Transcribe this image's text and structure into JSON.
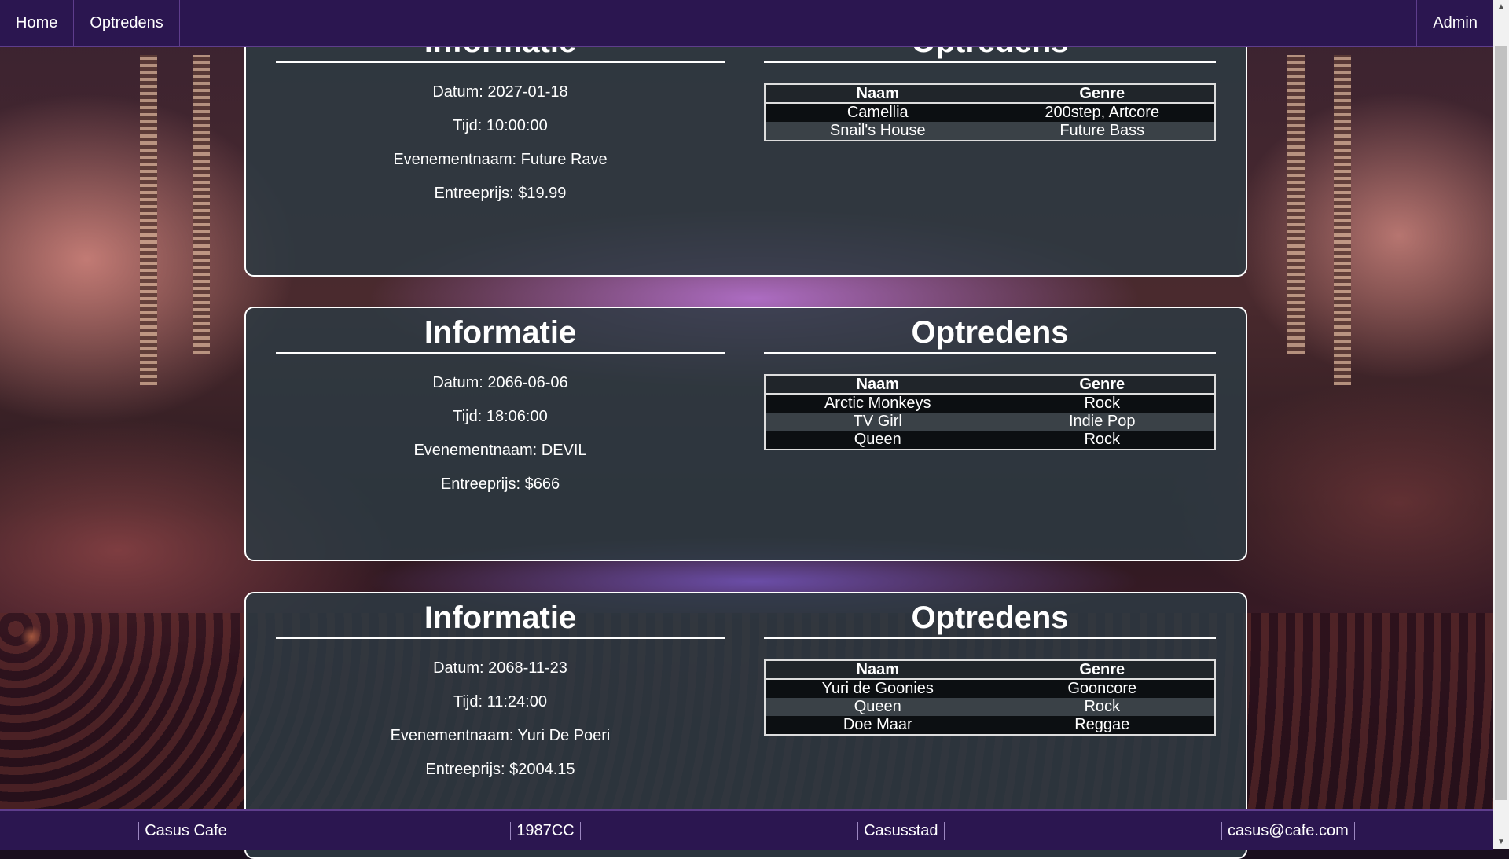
{
  "nav": {
    "home": "Home",
    "optredens": "Optredens",
    "admin": "Admin"
  },
  "events": [
    {
      "info_title": "Informatie",
      "perf_title": "Optredens",
      "datum": "Datum: 2027-01-18",
      "tijd": "Tijd: 10:00:00",
      "evenementnaam": "Evenementnaam: Future Rave",
      "entreeprijs": "Entreeprijs: $19.99",
      "headers": [
        "Naam",
        "Genre"
      ],
      "rows": [
        [
          "Camellia",
          "200step, Artcore"
        ],
        [
          "Snail's House",
          "Future Bass"
        ]
      ]
    },
    {
      "info_title": "Informatie",
      "perf_title": "Optredens",
      "datum": "Datum: 2066-06-06",
      "tijd": "Tijd: 18:06:00",
      "evenementnaam": "Evenementnaam: DEVIL",
      "entreeprijs": "Entreeprijs: $666",
      "headers": [
        "Naam",
        "Genre"
      ],
      "rows": [
        [
          "Arctic Monkeys",
          "Rock"
        ],
        [
          "TV Girl",
          "Indie Pop"
        ],
        [
          "Queen",
          "Rock"
        ]
      ]
    },
    {
      "info_title": "Informatie",
      "perf_title": "Optredens",
      "datum": "Datum: 2068-11-23",
      "tijd": "Tijd: 11:24:00",
      "evenementnaam": "Evenementnaam: Yuri De Poeri",
      "entreeprijs": "Entreeprijs: $2004.15",
      "headers": [
        "Naam",
        "Genre"
      ],
      "rows": [
        [
          "Yuri de Goonies",
          "Gooncore"
        ],
        [
          "Queen",
          "Rock"
        ],
        [
          "Doe Maar",
          "Reggae"
        ]
      ]
    }
  ],
  "footer": {
    "name": "Casus Cafe",
    "postcode": "1987CC",
    "city": "Casusstad",
    "email": "casus@cafe.com"
  },
  "colors": {
    "nav_bg": "#2b1650",
    "card_bg": "#2d3a42"
  }
}
